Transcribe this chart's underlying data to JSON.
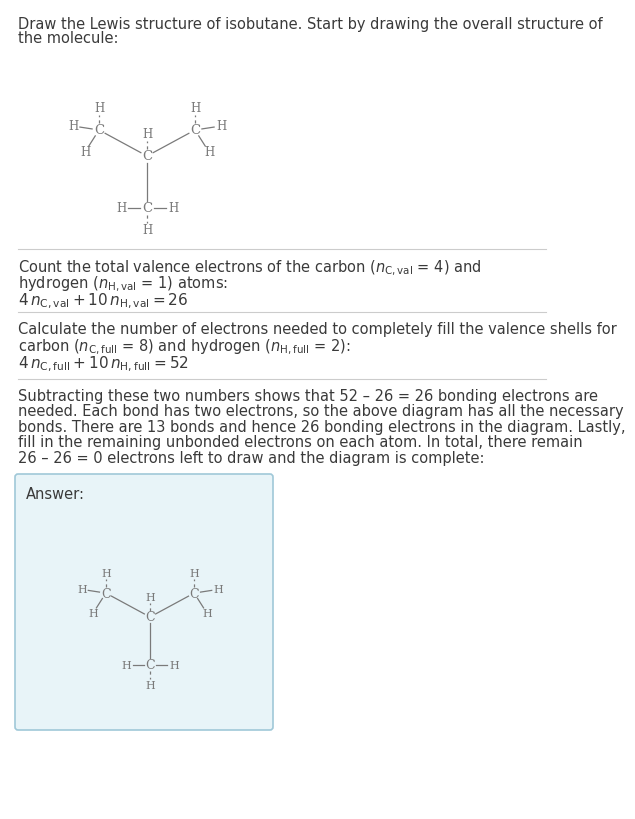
{
  "background_color": "#ffffff",
  "text_color": "#3a3a3a",
  "molecule_color": "#7a7a7a",
  "answer_box_color": "#e8f4f8",
  "answer_box_edge_color": "#a0c8d8",
  "font_size_body": 10.5,
  "divider_color": "#cccccc",
  "title_line1": "Draw the Lewis structure of isobutane. Start by drawing the overall structure of",
  "title_line2": "the molecule:",
  "s1_line1": "Count the total valence electrons of the carbon (",
  "s1_line1_math": "n_{C,val}",
  "s1_line1_rest": " = 4) and",
  "s1_line2a": "hydrogen (",
  "s1_line2_math": "n_{H,val}",
  "s1_line2b": " = 1) atoms:",
  "s1_formula": "4 n_{C,val} + 10 n_{H,val} = 26",
  "s2_line1": "Calculate the number of electrons needed to completely fill the valence shells for",
  "s2_line2a": "carbon (",
  "s2_line2_math1": "n_{C,full}",
  "s2_line2b": " = 8) and hydrogen (",
  "s2_line2_math2": "n_{H,full}",
  "s2_line2c": " = 2):",
  "s2_formula": "4 n_{C,full} + 10 n_{H,full} = 52",
  "s3_line1": "Subtracting these two numbers shows that 52 – 26 = 26 bonding electrons are",
  "s3_line2": "needed. Each bond has two electrons, so the above diagram has all the necessary",
  "s3_line3": "bonds. There are 13 bonds and hence 26 bonding electrons in the diagram. Lastly,",
  "s3_line4": "fill in the remaining unbonded electrons on each atom. In total, there remain",
  "s3_line5": "26 – 26 = 0 electrons left to draw and the diagram is complete:",
  "answer_label": "Answer:"
}
